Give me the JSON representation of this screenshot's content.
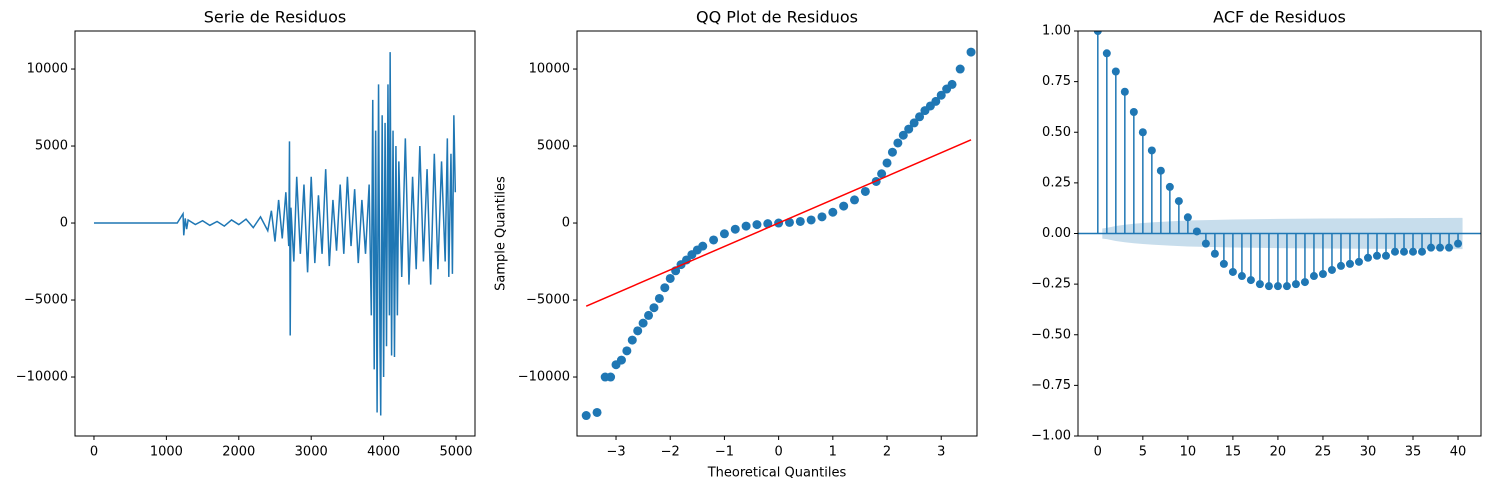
{
  "chart_data": [
    {
      "type": "line",
      "title": "Serie de Residuos",
      "color": "#1f77b4",
      "x": [
        0,
        500,
        1000,
        1150,
        1230,
        1240,
        1260,
        1280,
        1300,
        1400,
        1500,
        1600,
        1700,
        1800,
        1900,
        2000,
        2100,
        2200,
        2300,
        2400,
        2450,
        2500,
        2550,
        2600,
        2650,
        2690,
        2700,
        2710,
        2720,
        2760,
        2800,
        2850,
        2900,
        2950,
        3000,
        3050,
        3100,
        3150,
        3200,
        3250,
        3300,
        3350,
        3400,
        3450,
        3500,
        3550,
        3600,
        3650,
        3700,
        3750,
        3800,
        3830,
        3850,
        3870,
        3890,
        3910,
        3930,
        3950,
        3960,
        3980,
        4000,
        4020,
        4040,
        4060,
        4080,
        4090,
        4110,
        4130,
        4150,
        4170,
        4190,
        4210,
        4250,
        4300,
        4350,
        4400,
        4450,
        4500,
        4550,
        4600,
        4650,
        4700,
        4750,
        4800,
        4850,
        4880,
        4900,
        4930,
        4950,
        4970,
        4990
      ],
      "values": [
        0,
        0,
        0,
        0,
        600,
        -800,
        300,
        -400,
        200,
        -100,
        150,
        -150,
        100,
        -200,
        200,
        -100,
        250,
        -300,
        400,
        -500,
        800,
        -1200,
        1500,
        -1000,
        2000,
        -1500,
        5300,
        -7300,
        1000,
        -2500,
        3000,
        -2000,
        2500,
        -3200,
        3000,
        -2600,
        1800,
        -2000,
        3500,
        -2800,
        1500,
        -1800,
        2500,
        -2000,
        3000,
        -1500,
        2200,
        -2600,
        1500,
        -2000,
        2500,
        -6000,
        8000,
        -9500,
        6000,
        -12300,
        9000,
        -8000,
        -12500,
        7000,
        -10000,
        6500,
        -8000,
        9000,
        -6000,
        11100,
        -8600,
        6000,
        -8700,
        5000,
        -6000,
        4000,
        -3500,
        5500,
        -4000,
        3000,
        -3000,
        5000,
        -2500,
        3500,
        -4000,
        4500,
        -3000,
        4000,
        -2500,
        5500,
        -3500,
        4500,
        -3300,
        7000,
        2000
      ],
      "xlim": [
        -262,
        5262
      ],
      "ylim": [
        -13830,
        12470
      ],
      "xticks": [
        0,
        1000,
        2000,
        3000,
        4000,
        5000
      ],
      "yticks": [
        {
          "value": -10000,
          "label": "−10000"
        },
        {
          "value": -5000,
          "label": "−5000"
        },
        0,
        5000,
        10000
      ]
    },
    {
      "type": "scatter",
      "title": "QQ Plot de Residuos",
      "xlabel": "Theoretical Quantiles",
      "ylabel": "Sample Quantiles",
      "color": "#1f77b4",
      "x": [
        -3.55,
        -3.35,
        -3.2,
        -3.1,
        -3.0,
        -2.9,
        -2.8,
        -2.7,
        -2.6,
        -2.5,
        -2.4,
        -2.3,
        -2.2,
        -2.1,
        -2.0,
        -1.9,
        -1.8,
        -1.7,
        -1.6,
        -1.5,
        -1.4,
        -1.2,
        -1.0,
        -0.8,
        -0.6,
        -0.4,
        -0.2,
        0,
        0.2,
        0.4,
        0.6,
        0.8,
        1.0,
        1.2,
        1.4,
        1.6,
        1.8,
        1.9,
        2.0,
        2.1,
        2.2,
        2.3,
        2.4,
        2.5,
        2.6,
        2.7,
        2.8,
        2.9,
        3.0,
        3.1,
        3.2,
        3.35,
        3.55
      ],
      "values": [
        -12500,
        -12300,
        -10000,
        -10000,
        -9200,
        -8900,
        -8300,
        -7600,
        -7000,
        -6500,
        -6000,
        -5500,
        -4900,
        -4200,
        -3600,
        -3100,
        -2700,
        -2400,
        -2050,
        -1750,
        -1500,
        -1100,
        -700,
        -400,
        -200,
        -100,
        -40,
        0,
        40,
        100,
        200,
        400,
        700,
        1100,
        1500,
        2050,
        2700,
        3200,
        3900,
        4600,
        5200,
        5700,
        6100,
        6500,
        6900,
        7300,
        7600,
        7900,
        8300,
        8700,
        9000,
        10000,
        11100
      ],
      "fit_line": {
        "x": [
          -3.55,
          3.55
        ],
        "values": [
          -5400,
          5400
        ],
        "color": "#ff0000"
      },
      "xlim": [
        -3.72,
        3.66
      ],
      "ylim": [
        -13830,
        12470
      ],
      "xticks": [
        {
          "value": -3,
          "label": "−3"
        },
        {
          "value": -2,
          "label": "−2"
        },
        {
          "value": -1,
          "label": "−1"
        },
        0,
        1,
        2,
        3
      ],
      "yticks": [
        {
          "value": -10000,
          "label": "−10000"
        },
        {
          "value": -5000,
          "label": "−5000"
        },
        0,
        5000,
        10000
      ]
    },
    {
      "type": "stem",
      "title": "ACF de Residuos",
      "color": "#1f77b4",
      "x": [
        0,
        1,
        2,
        3,
        4,
        5,
        6,
        7,
        8,
        9,
        10,
        11,
        12,
        13,
        14,
        15,
        16,
        17,
        18,
        19,
        20,
        21,
        22,
        23,
        24,
        25,
        26,
        27,
        28,
        29,
        30,
        31,
        32,
        33,
        34,
        35,
        36,
        37,
        38,
        39,
        40
      ],
      "values": [
        1.0,
        0.89,
        0.8,
        0.7,
        0.6,
        0.5,
        0.41,
        0.31,
        0.23,
        0.16,
        0.08,
        0.01,
        -0.05,
        -0.1,
        -0.15,
        -0.19,
        -0.21,
        -0.23,
        -0.25,
        -0.26,
        -0.26,
        -0.26,
        -0.25,
        -0.24,
        -0.21,
        -0.2,
        -0.18,
        -0.16,
        -0.15,
        -0.14,
        -0.12,
        -0.11,
        -0.11,
        -0.09,
        -0.09,
        -0.09,
        -0.09,
        -0.07,
        -0.07,
        -0.07,
        -0.05
      ],
      "confidence_band": {
        "x": [
          0.5,
          1,
          2,
          3,
          4,
          5,
          6,
          8,
          10,
          12,
          15,
          20,
          25,
          30,
          35,
          40,
          40.5
        ],
        "upper": [
          0.025,
          0.028,
          0.037,
          0.043,
          0.048,
          0.052,
          0.055,
          0.06,
          0.064,
          0.066,
          0.069,
          0.072,
          0.074,
          0.075,
          0.076,
          0.077,
          0.077
        ],
        "lower": [
          -0.025,
          -0.028,
          -0.037,
          -0.043,
          -0.048,
          -0.052,
          -0.055,
          -0.06,
          -0.064,
          -0.066,
          -0.069,
          -0.072,
          -0.074,
          -0.075,
          -0.076,
          -0.077,
          -0.077
        ],
        "color": "#1f77b4"
      },
      "xlim": [
        -2.2,
        42.55
      ],
      "ylim": [
        -1,
        1
      ],
      "xticks": [
        0,
        5,
        10,
        15,
        20,
        25,
        30,
        35,
        40
      ],
      "yticks": [
        {
          "value": -1,
          "label": "−1.00"
        },
        {
          "value": -0.75,
          "label": "−0.75"
        },
        {
          "value": -0.5,
          "label": "−0.50"
        },
        {
          "value": -0.25,
          "label": "−0.25"
        },
        {
          "value": 0,
          "label": "0.00"
        },
        {
          "value": 0.25,
          "label": "0.25"
        },
        {
          "value": 0.5,
          "label": "0.50"
        },
        {
          "value": 0.75,
          "label": "0.75"
        },
        {
          "value": 1,
          "label": "1.00"
        }
      ]
    }
  ]
}
